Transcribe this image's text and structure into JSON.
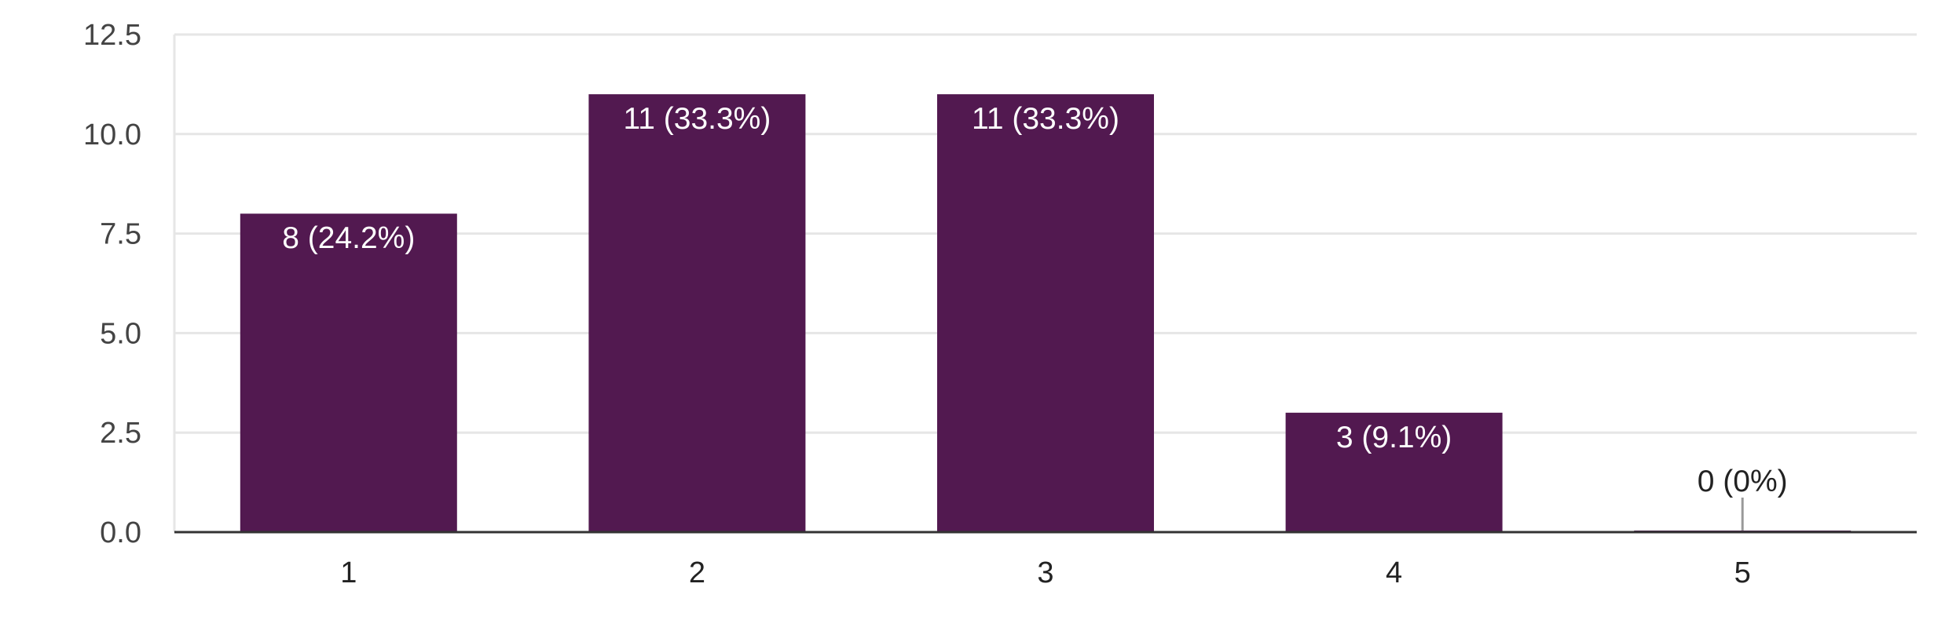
{
  "chart_data": {
    "type": "bar",
    "categories": [
      "1",
      "2",
      "3",
      "4",
      "5"
    ],
    "values": [
      8,
      11,
      11,
      3,
      0
    ],
    "data_labels": [
      "8 (24.2%)",
      "11 (33.3%)",
      "11 (33.3%)",
      "3 (9.1%)",
      "0 (0%)"
    ],
    "yticks": [
      "0.0",
      "2.5",
      "5.0",
      "7.5",
      "10.0",
      "12.5"
    ],
    "ylim": [
      0,
      12.5
    ],
    "grid": true,
    "colors": {
      "bar": "#521950",
      "grid": "#e6e6e6",
      "axis": "#333333",
      "inside_label": "#ffffff",
      "outside_label": "#222222",
      "leader": "#999999"
    }
  }
}
